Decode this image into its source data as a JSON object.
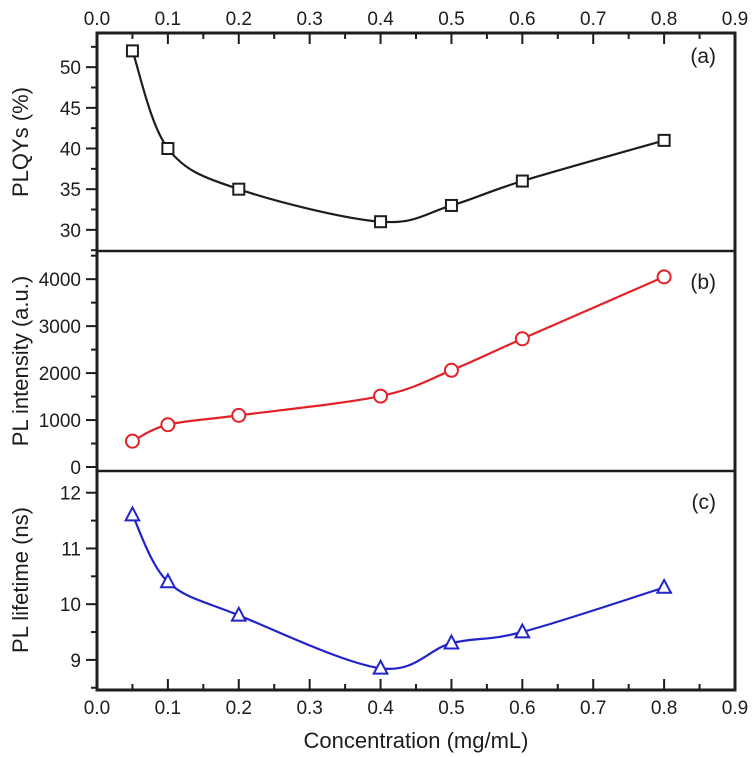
{
  "figure": {
    "background": "#ffffff",
    "frame_color": "#1d1d1d"
  },
  "x_axis": {
    "label": "Concentration (mg/mL)",
    "ticks": [
      "0.0",
      "0.1",
      "0.2",
      "0.3",
      "0.4",
      "0.5",
      "0.6",
      "0.7",
      "0.8",
      "0.9"
    ],
    "range": [
      0.0,
      0.9
    ],
    "minor_step": 0.05,
    "mirrored_top": true
  },
  "chart_data": [
    {
      "type": "line",
      "panel": "a",
      "label": "(a)",
      "ylabel": "PLQYs (%)",
      "x": [
        0.05,
        0.1,
        0.2,
        0.4,
        0.5,
        0.6,
        0.8
      ],
      "values": [
        52,
        40,
        35,
        31,
        33,
        36,
        41
      ],
      "yticks": [
        "30",
        "35",
        "40",
        "45",
        "50"
      ],
      "yminor": [
        27.5,
        32.5,
        37.5,
        42.5,
        47.5,
        52.5
      ],
      "ylim": [
        27.4,
        54.2
      ],
      "marker": "square",
      "color": "#1d1d1d",
      "grid": false
    },
    {
      "type": "line",
      "panel": "b",
      "label": "(b)",
      "ylabel": "PL intensity (a.u.)",
      "x": [
        0.05,
        0.1,
        0.2,
        0.4,
        0.5,
        0.6,
        0.8
      ],
      "values": [
        550,
        900,
        1100,
        1510,
        2060,
        2730,
        4050
      ],
      "yticks": [
        "0",
        "1000",
        "2000",
        "3000",
        "4000"
      ],
      "yminor": [
        500,
        1500,
        2500,
        3500,
        4500
      ],
      "ylim": [
        -85,
        4600
      ],
      "marker": "circle",
      "color": "#e32128",
      "grid": false
    },
    {
      "type": "line",
      "panel": "c",
      "label": "(c)",
      "ylabel": "PL lifetime (ns)",
      "x": [
        0.05,
        0.1,
        0.2,
        0.4,
        0.5,
        0.6,
        0.8
      ],
      "values": [
        11.6,
        10.4,
        9.8,
        8.85,
        9.3,
        9.5,
        10.3
      ],
      "yticks": [
        "9",
        "10",
        "11",
        "12"
      ],
      "yminor": [
        8.5,
        9.5,
        10.5,
        11.5
      ],
      "ylim": [
        8.46,
        12.39
      ],
      "marker": "triangle",
      "color": "#2323cc",
      "grid": false
    }
  ]
}
